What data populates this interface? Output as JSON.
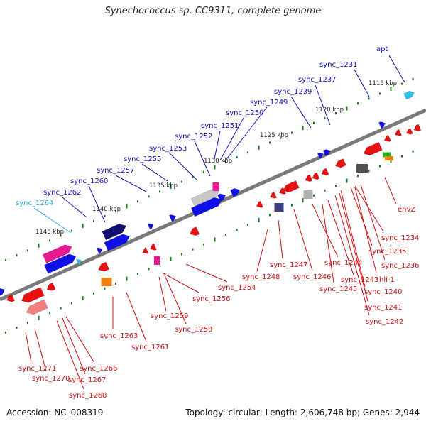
{
  "title": "Synechococcus sp. CC9311, complete genome",
  "accession": "Accession: NC_008319",
  "topology": "Topology: circular; Length: 2,606,748 bp; Genes: 2,944",
  "colors": {
    "top_label": "#1010c8",
    "bottom_label": "#d01010",
    "highlight_label": "#20a8e8",
    "backbone": "#7a7a7a",
    "tick": "#1a7a1a"
  },
  "kbp_markers": [
    "1115 kbp",
    "1120 kbp",
    "1125 kbp",
    "1130 kbp",
    "1135 kbp",
    "1140 kbp",
    "1145 kbp"
  ],
  "top_labels": [
    "apt",
    "sync_1231",
    "sync_1237",
    "sync_1239",
    "sync_1249",
    "sync_1250",
    "sync_1251",
    "sync_1252",
    "sync_1253",
    "sync_1255",
    "sync_1257",
    "sync_1260",
    "sync_1262",
    "sync_1264"
  ],
  "bottom_labels": [
    "envZ",
    "sync_1234",
    "sync_1235",
    "sync_1236",
    "hli-1",
    "sync_1240",
    "sync_1241",
    "sync_1242",
    "sync_1243",
    "sync_1244",
    "sync_1245",
    "sync_1246",
    "sync_1247",
    "sync_1248",
    "sync_1254",
    "sync_1256",
    "sync_1258",
    "sync_1259",
    "sync_1261",
    "sync_1263",
    "sync_1266",
    "sync_1267",
    "sync_1268",
    "sync_1270",
    "sync_1271"
  ]
}
